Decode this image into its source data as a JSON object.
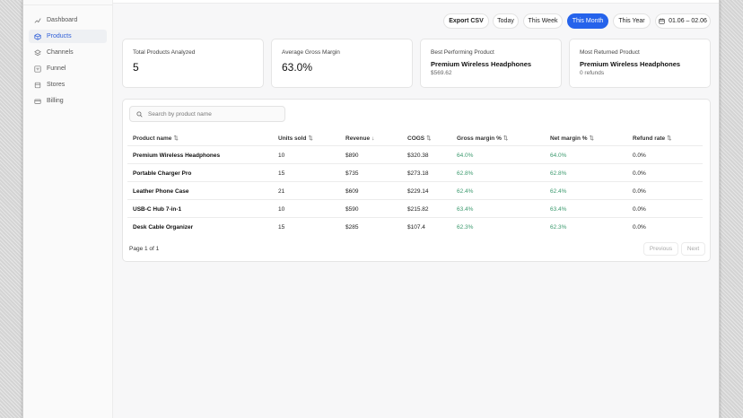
{
  "sidebar": {
    "items": [
      {
        "label": "Dashboard",
        "icon": "trend-icon",
        "active": false
      },
      {
        "label": "Products",
        "icon": "box-icon",
        "active": true
      },
      {
        "label": "Channels",
        "icon": "layers-icon",
        "active": false
      },
      {
        "label": "Funnel",
        "icon": "funnel-icon",
        "active": false
      },
      {
        "label": "Stores",
        "icon": "store-icon",
        "active": false
      },
      {
        "label": "Billing",
        "icon": "card-icon",
        "active": false
      }
    ]
  },
  "toolbar": {
    "export_label": "Export CSV",
    "ranges": [
      "Today",
      "This Week",
      "This Month",
      "This Year"
    ],
    "selected_range": "This Month",
    "date_range": "01.06 – 02.06"
  },
  "cards": [
    {
      "label": "Total Products Analyzed",
      "value": "5"
    },
    {
      "label": "Average Gross Margin",
      "value": "63.0%"
    },
    {
      "label": "Best Performing Product",
      "name": "Premium Wireless Headphones",
      "sub": "$569.62"
    },
    {
      "label": "Most Returned Product",
      "name": "Premium Wireless Headphones",
      "sub": "0 refunds"
    }
  ],
  "search": {
    "placeholder": "Search by product name",
    "value": ""
  },
  "table": {
    "columns": [
      {
        "label": "Product name",
        "sort": "⇅"
      },
      {
        "label": "Units sold",
        "sort": "⇅"
      },
      {
        "label": "Revenue",
        "sort": "↓"
      },
      {
        "label": "COGS",
        "sort": "⇅"
      },
      {
        "label": "Gross margin %",
        "sort": "⇅"
      },
      {
        "label": "Net margin %",
        "sort": "⇅"
      },
      {
        "label": "Refund rate",
        "sort": "⇅"
      }
    ],
    "rows": [
      [
        "Premium Wireless Headphones",
        "10",
        "$890",
        "$320.38",
        "64.0%",
        "64.0%",
        "0.0%"
      ],
      [
        "Portable Charger Pro",
        "15",
        "$735",
        "$273.18",
        "62.8%",
        "62.8%",
        "0.0%"
      ],
      [
        "Leather Phone Case",
        "21",
        "$609",
        "$229.14",
        "62.4%",
        "62.4%",
        "0.0%"
      ],
      [
        "USB-C Hub 7-in-1",
        "10",
        "$590",
        "$215.82",
        "63.4%",
        "63.4%",
        "0.0%"
      ],
      [
        "Desk Cable Organizer",
        "15",
        "$285",
        "$107.4",
        "62.3%",
        "62.3%",
        "0.0%"
      ]
    ]
  },
  "pagination": {
    "info": "Page 1 of 1",
    "previous": "Previous",
    "next": "Next"
  },
  "colors": {
    "accent": "#2563eb",
    "positive": "#3c9a6e"
  }
}
